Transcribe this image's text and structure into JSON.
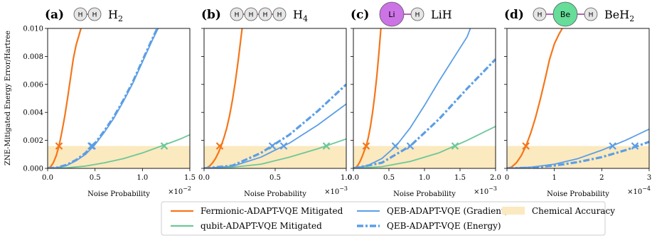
{
  "colors": {
    "fermionic": "#f5761a",
    "qubit": "#6cc799",
    "qeb_gradient": "#5b9ee6",
    "qeb_energy": "#5b9ee6",
    "chemical_accuracy": "#fbe9bf",
    "h_atom": "#e6e6e6",
    "li_atom": "#cc73e6",
    "be_atom": "#66dd99",
    "bond": "#b266b2"
  },
  "ylabel": "ZNE-Mitigated Energy Error/Hartree",
  "legend": {
    "fermionic": "Fermionic-ADAPT-VQE Mitigated",
    "qubit": "qubit-ADAPT-VQE Mitigated",
    "qeb_gradient": "QEB-ADAPT-VQE (Gradient)",
    "qeb_energy": "QEB-ADAPT-VQE (Energy)",
    "chemical_accuracy": "Chemical Accuracy"
  },
  "chart_data": [
    {
      "type": "line",
      "letter": "(a)",
      "molecule": "H",
      "subscript": "2",
      "atoms": [
        "H",
        "H"
      ],
      "xlabel": "Noise Probability",
      "x_exponent_base": "×10",
      "x_exponent": "−2",
      "xlim": [
        0,
        1.5
      ],
      "ylim": [
        0,
        0.01
      ],
      "x_ticks": [
        "0.0",
        "0.5",
        "1.0",
        "1.5"
      ],
      "y_ticks": [
        "0.000",
        "0.002",
        "0.004",
        "0.006",
        "0.008",
        "0.010"
      ],
      "chemical_accuracy": 0.0016,
      "series": [
        {
          "key": "fermionic",
          "x": [
            0,
            0.03,
            0.06,
            0.09,
            0.12,
            0.15,
            0.18,
            0.21,
            0.24,
            0.27,
            0.3,
            0.33,
            0.36
          ],
          "y": [
            0,
            0.0001,
            0.0004,
            0.0009,
            0.0016,
            0.0026,
            0.0037,
            0.005,
            0.0064,
            0.0078,
            0.0088,
            0.0095,
            0.0102
          ],
          "marker": {
            "x": 0.12,
            "y": 0.0016
          }
        },
        {
          "key": "qubit",
          "x": [
            0,
            0.2,
            0.4,
            0.6,
            0.8,
            1.0,
            1.2,
            1.4,
            1.5
          ],
          "y": [
            0,
            4e-05,
            0.00016,
            0.0004,
            0.0007,
            0.0011,
            0.0016,
            0.0021,
            0.0024
          ],
          "marker": {
            "x": 1.23,
            "y": 0.0016
          }
        },
        {
          "key": "qeb_gradient",
          "x": [
            0,
            0.1,
            0.2,
            0.3,
            0.4,
            0.5,
            0.6,
            0.7,
            0.8,
            0.9,
            1.0,
            1.1,
            1.18
          ],
          "y": [
            0,
            5e-05,
            0.0002,
            0.00055,
            0.001,
            0.0017,
            0.0026,
            0.0036,
            0.0048,
            0.0061,
            0.0076,
            0.0091,
            0.0102
          ],
          "marker": {
            "x": 0.47,
            "y": 0.0016
          }
        },
        {
          "key": "qeb_energy",
          "x": [
            0,
            0.1,
            0.2,
            0.3,
            0.4,
            0.5,
            0.6,
            0.7,
            0.8,
            0.9,
            1.0,
            1.1,
            1.17
          ],
          "y": [
            0,
            6e-05,
            0.00025,
            0.0006,
            0.0011,
            0.0018,
            0.0027,
            0.0037,
            0.0049,
            0.0062,
            0.0077,
            0.0092,
            0.0102
          ],
          "marker": {
            "x": 0.46,
            "y": 0.0016
          }
        }
      ]
    },
    {
      "type": "line",
      "letter": "(b)",
      "molecule": "H",
      "subscript": "4",
      "atoms": [
        "H",
        "H",
        "H",
        "H"
      ],
      "xlabel": "Noise Probability",
      "x_exponent_base": "×10",
      "x_exponent": "−3",
      "xlim": [
        0,
        1.0
      ],
      "ylim": [
        0,
        0.01
      ],
      "x_ticks": [
        "0.0",
        "0.5",
        "1.0"
      ],
      "y_ticks": [],
      "chemical_accuracy": 0.0016,
      "series": [
        {
          "key": "fermionic",
          "x": [
            0,
            0.02,
            0.04,
            0.06,
            0.08,
            0.1,
            0.12,
            0.14,
            0.16,
            0.18,
            0.2,
            0.22,
            0.24,
            0.27
          ],
          "y": [
            0,
            4e-05,
            0.00018,
            0.0004,
            0.0007,
            0.0011,
            0.0016,
            0.0022,
            0.0029,
            0.0038,
            0.0049,
            0.0062,
            0.0077,
            0.0102
          ],
          "marker": {
            "x": 0.11,
            "y": 0.0016
          }
        },
        {
          "key": "qubit",
          "x": [
            0,
            0.2,
            0.4,
            0.6,
            0.8,
            1.0
          ],
          "y": [
            0,
            8e-05,
            0.0003,
            0.0008,
            0.0014,
            0.0021
          ],
          "marker": {
            "x": 0.86,
            "y": 0.0016
          }
        },
        {
          "key": "qeb_gradient",
          "x": [
            0,
            0.2,
            0.4,
            0.6,
            0.8,
            1.0
          ],
          "y": [
            0,
            0.00015,
            0.0008,
            0.0018,
            0.0031,
            0.0046
          ],
          "marker": {
            "x": 0.56,
            "y": 0.0016
          }
        },
        {
          "key": "qeb_energy",
          "x": [
            0,
            0.2,
            0.4,
            0.6,
            0.8,
            1.0
          ],
          "y": [
            0,
            0.0002,
            0.0011,
            0.0024,
            0.0041,
            0.006
          ],
          "marker": {
            "x": 0.48,
            "y": 0.0016
          }
        }
      ]
    },
    {
      "type": "line",
      "letter": "(c)",
      "molecule": "LiH",
      "subscript": "",
      "atoms": [
        "Li",
        "H"
      ],
      "xlabel": "Noise Probability",
      "x_exponent_base": "×10",
      "x_exponent": "−3",
      "xlim": [
        0,
        2.0
      ],
      "ylim": [
        0,
        0.01
      ],
      "x_ticks": [
        "0.0",
        "0.5",
        "1.0",
        "1.5",
        "2.0"
      ],
      "y_ticks": [],
      "chemical_accuracy": 0.0016,
      "series": [
        {
          "key": "fermionic",
          "x": [
            0,
            0.03,
            0.06,
            0.09,
            0.12,
            0.15,
            0.18,
            0.21,
            0.24,
            0.27,
            0.3,
            0.33,
            0.36,
            0.39
          ],
          "y": [
            0,
            5e-05,
            0.0002,
            0.00045,
            0.0008,
            0.0012,
            0.0016,
            0.0022,
            0.003,
            0.004,
            0.0052,
            0.0066,
            0.0083,
            0.0102
          ],
          "marker": {
            "x": 0.18,
            "y": 0.0016
          }
        },
        {
          "key": "qubit",
          "x": [
            0,
            0.4,
            0.8,
            1.2,
            1.6,
            2.0
          ],
          "y": [
            0,
            0.00012,
            0.0005,
            0.0011,
            0.002,
            0.003
          ],
          "marker": {
            "x": 1.43,
            "y": 0.0016
          }
        },
        {
          "key": "qeb_gradient",
          "x": [
            0,
            0.2,
            0.4,
            0.6,
            0.8,
            1.0,
            1.2,
            1.4,
            1.6,
            1.66
          ],
          "y": [
            0,
            0.0002,
            0.0007,
            0.0016,
            0.0029,
            0.0045,
            0.0062,
            0.0078,
            0.0094,
            0.0102
          ],
          "marker": {
            "x": 0.59,
            "y": 0.0016
          }
        },
        {
          "key": "qeb_energy",
          "x": [
            0,
            0.4,
            0.8,
            1.2,
            1.6,
            2.0
          ],
          "y": [
            0,
            0.0004,
            0.0016,
            0.0035,
            0.0057,
            0.0078
          ],
          "marker": {
            "x": 0.8,
            "y": 0.0016
          }
        }
      ]
    },
    {
      "type": "line",
      "letter": "(d)",
      "molecule": "BeH",
      "subscript": "2",
      "atoms": [
        "H",
        "Be",
        "H"
      ],
      "xlabel": "Noise Probability",
      "x_exponent_base": "×10",
      "x_exponent": "−4",
      "xlim": [
        0,
        3.0
      ],
      "ylim": [
        0,
        0.01
      ],
      "x_ticks": [
        "0",
        "1",
        "2",
        "3"
      ],
      "y_ticks": [],
      "chemical_accuracy": 0.0016,
      "series": [
        {
          "key": "fermionic",
          "x": [
            0,
            0.1,
            0.2,
            0.3,
            0.4,
            0.5,
            0.6,
            0.7,
            0.8,
            0.9,
            1.0,
            1.1,
            1.2
          ],
          "y": [
            0,
            0.0001,
            0.0004,
            0.0009,
            0.0016,
            0.0025,
            0.0036,
            0.0049,
            0.0063,
            0.0078,
            0.0089,
            0.0096,
            0.0102
          ],
          "marker": {
            "x": 0.4,
            "y": 0.0016
          }
        },
        {
          "key": "qubit",
          "x": [
            0,
            1.0,
            2.0,
            3.0
          ],
          "y": [
            0,
            0.0,
            0.0,
            0.0
          ],
          "marker": null
        },
        {
          "key": "qeb_gradient",
          "x": [
            0,
            0.5,
            1.0,
            1.5,
            2.0,
            2.5,
            3.0
          ],
          "y": [
            0,
            8e-05,
            0.0003,
            0.0007,
            0.0013,
            0.002,
            0.0028
          ],
          "marker": {
            "x": 2.23,
            "y": 0.0016
          }
        },
        {
          "key": "qeb_energy",
          "x": [
            0,
            0.5,
            1.0,
            1.5,
            2.0,
            2.5,
            3.0
          ],
          "y": [
            0,
            5e-05,
            0.0002,
            0.00045,
            0.0008,
            0.0013,
            0.0019
          ],
          "marker": {
            "x": 2.7,
            "y": 0.0016
          }
        }
      ]
    }
  ]
}
